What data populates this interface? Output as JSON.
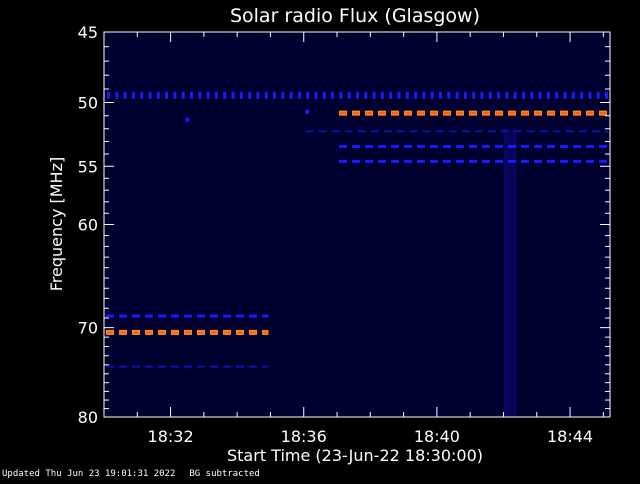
{
  "footer": {
    "updated": "Updated Thu Jun 23 19:01:31 2022",
    "mode": "BG subtracted"
  },
  "colors": {
    "background": "#000000",
    "plot_background": "#000030",
    "axis": "#ffffff",
    "blue_band": "#1a1aff",
    "dim_band": "#1010b0",
    "hot_band": "#ff8a1a",
    "hot_core": "#ff3a10"
  },
  "chart_data": {
    "type": "heatmap",
    "title": "Solar radio Flux (Glasgow)",
    "xlabel": "Start Time (23-Jun-22 18:30:00)",
    "ylabel": "Frequency [MHz]",
    "x_unit": "minutes after 18:30",
    "xlim": [
      0,
      15.2
    ],
    "ylim": [
      45,
      80
    ],
    "y_scale": "log",
    "x_ticks": [
      {
        "value": 2,
        "label": "18:32"
      },
      {
        "value": 6,
        "label": "18:36"
      },
      {
        "value": 10,
        "label": "18:40"
      },
      {
        "value": 14,
        "label": "18:44"
      }
    ],
    "y_ticks": [
      {
        "value": 45,
        "label": "45"
      },
      {
        "value": 50,
        "label": "50"
      },
      {
        "value": 55,
        "label": "55"
      },
      {
        "value": 60,
        "label": "60"
      },
      {
        "value": 70,
        "label": "70"
      },
      {
        "value": 80,
        "label": "80"
      }
    ],
    "bands": [
      {
        "freq": 49.5,
        "x_start": 0,
        "x_end": 15.2,
        "intensity": "medium",
        "style": "ticks"
      },
      {
        "freq": 50.8,
        "x_start": 7.0,
        "x_end": 15.2,
        "intensity": "high"
      },
      {
        "freq": 52.2,
        "x_start": 6.0,
        "x_end": 15.2,
        "intensity": "low"
      },
      {
        "freq": 53.4,
        "x_start": 7.0,
        "x_end": 15.2,
        "intensity": "medium"
      },
      {
        "freq": 54.6,
        "x_start": 7.0,
        "x_end": 15.2,
        "intensity": "medium"
      },
      {
        "freq": 68.8,
        "x_start": 0,
        "x_end": 5.0,
        "intensity": "medium"
      },
      {
        "freq": 70.5,
        "x_start": 0,
        "x_end": 5.0,
        "intensity": "high"
      },
      {
        "freq": 74.2,
        "x_start": 0,
        "x_end": 5.0,
        "intensity": "low"
      }
    ],
    "spots": [
      {
        "time": 2.5,
        "freq": 51.3
      },
      {
        "time": 6.1,
        "freq": 50.7
      }
    ],
    "vertical_features": [
      {
        "time": 12.1,
        "freq_start": 52,
        "freq_end": 80
      },
      {
        "time": 12.3,
        "freq_start": 52,
        "freq_end": 80
      }
    ]
  }
}
